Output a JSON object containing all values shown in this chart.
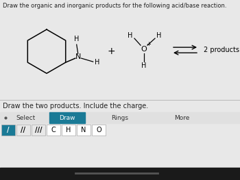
{
  "title": "Draw the organic and inorganic products for the following acid/base reaction.",
  "title_fontsize": 6.0,
  "bg_color": "#e8e8e8",
  "top_panel_color": "#f2f2f2",
  "bottom_panel_color": "#f0f0f0",
  "arrow_label": "2 products",
  "arrow_label_fontsize": 7.0,
  "instruction": "Draw the two products. Include the charge.",
  "instruction_fontsize": 7.0,
  "select_label": "Select",
  "draw_label": "Draw",
  "rings_label": "Rings",
  "more_label": "More",
  "draw_btn_color": "#1a7a96",
  "btn_text_color": "#ffffff",
  "atom_buttons": [
    "C",
    "H",
    "N",
    "O"
  ],
  "bond_btn_bg": "#1a7a96",
  "separator_color": "#cccccc",
  "bottom_bar_color": "#1a1a1a",
  "toolbar_row1_bg": "#e0e0e0",
  "dot_color": "#555555"
}
